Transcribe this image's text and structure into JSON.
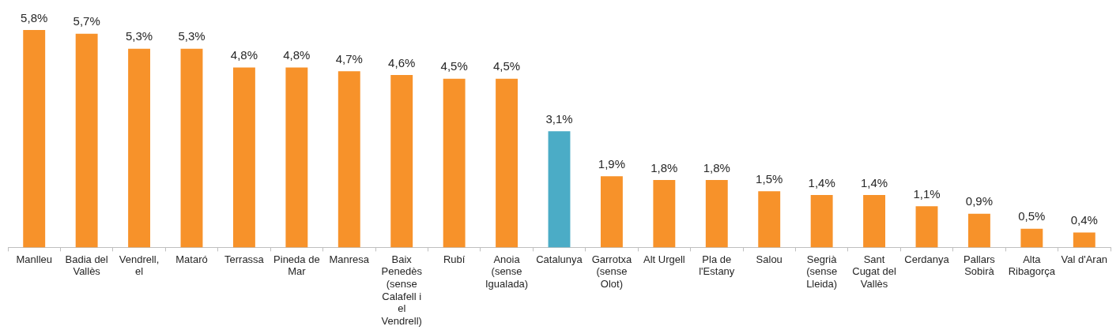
{
  "chart_data": {
    "type": "bar",
    "categories": [
      "Manlleu",
      "Badia del Vallès",
      "Vendrell, el",
      "Mataró",
      "Terrassa",
      "Pineda de Mar",
      "Manresa",
      "Baix Penedès (sense Calafell i el Vendrell)",
      "Rubí",
      "Anoia (sense Igualada)",
      "Catalunya",
      "Garrotxa (sense Olot)",
      "Alt Urgell",
      "Pla de l'Estany",
      "Salou",
      "Segrià (sense Lleida)",
      "Sant Cugat del Vallès",
      "Cerdanya",
      "Pallars Sobirà",
      "Alta Ribagorça",
      "Val d'Aran"
    ],
    "values": [
      5.8,
      5.7,
      5.3,
      5.3,
      4.8,
      4.8,
      4.7,
      4.6,
      4.5,
      4.5,
      3.1,
      1.9,
      1.8,
      1.8,
      1.5,
      1.4,
      1.4,
      1.1,
      0.9,
      0.5,
      0.4
    ],
    "value_labels": [
      "5,8%",
      "5,7%",
      "5,3%",
      "5,3%",
      "4,8%",
      "4,8%",
      "4,7%",
      "4,6%",
      "4,5%",
      "4,5%",
      "3,1%",
      "1,9%",
      "1,8%",
      "1,8%",
      "1,5%",
      "1,4%",
      "1,4%",
      "1,1%",
      "0,9%",
      "0,5%",
      "0,4%"
    ],
    "colors": [
      "#f7922a",
      "#f7922a",
      "#f7922a",
      "#f7922a",
      "#f7922a",
      "#f7922a",
      "#f7922a",
      "#f7922a",
      "#f7922a",
      "#f7922a",
      "#4bacc6",
      "#f7922a",
      "#f7922a",
      "#f7922a",
      "#f7922a",
      "#f7922a",
      "#f7922a",
      "#f7922a",
      "#f7922a",
      "#f7922a",
      "#f7922a"
    ],
    "grid": false,
    "legend": false
  }
}
